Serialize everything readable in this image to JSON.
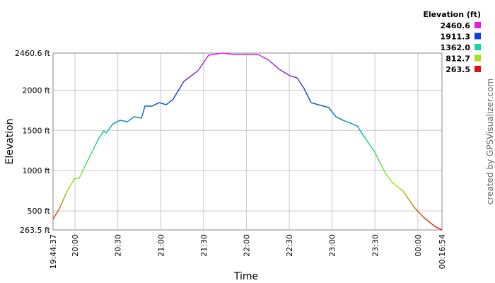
{
  "chart_data": {
    "type": "line",
    "x_label": "Time",
    "y_label": "Elevation",
    "credit": "created by GPSVisualizer.com",
    "grid": true,
    "line_width": 1.5,
    "legend": {
      "title": "Elevation (ft)",
      "entries": [
        {
          "value": 2460.6,
          "label": "2460.6",
          "color": "#e020e0"
        },
        {
          "value": 1911.3,
          "label": "1911.3",
          "color": "#1040d8"
        },
        {
          "value": 1362.0,
          "label": "1362.0",
          "color": "#10d8a0"
        },
        {
          "value": 812.7,
          "label": "812.7",
          "color": "#a8e020"
        },
        {
          "value": 263.5,
          "label": "263.5",
          "color": "#e01010"
        }
      ]
    },
    "xlim": [
      71077,
      87414
    ],
    "xticks": [
      {
        "value": 71077,
        "label": "19:44:37"
      },
      {
        "value": 72000,
        "label": "20:00"
      },
      {
        "value": 73800,
        "label": "20:30"
      },
      {
        "value": 75600,
        "label": "21:00"
      },
      {
        "value": 77400,
        "label": "21:30"
      },
      {
        "value": 79200,
        "label": "22:00"
      },
      {
        "value": 81000,
        "label": "22:30"
      },
      {
        "value": 82800,
        "label": "23:00"
      },
      {
        "value": 84600,
        "label": "23:30"
      },
      {
        "value": 86400,
        "label": "00:00"
      },
      {
        "value": 87414,
        "label": "00:16:54"
      }
    ],
    "ylim": [
      263.5,
      2460.6
    ],
    "yticks": [
      {
        "value": 263.5,
        "label": "263.5 ft"
      },
      {
        "value": 500,
        "label": "500 ft"
      },
      {
        "value": 1000,
        "label": "1000 ft"
      },
      {
        "value": 1500,
        "label": "1500 ft"
      },
      {
        "value": 2000,
        "label": "2000 ft"
      },
      {
        "value": 2460.6,
        "label": "2460.6 ft"
      }
    ],
    "x": [
      71077,
      71374,
      71671,
      71968,
      72176,
      72414,
      72711,
      73008,
      73215,
      73305,
      73602,
      73899,
      74196,
      74493,
      74790,
      74938,
      75235,
      75532,
      75829,
      76126,
      76572,
      77166,
      77611,
      78205,
      78651,
      79690,
      80136,
      80581,
      81027,
      81324,
      81621,
      81918,
      82215,
      82660,
      82957,
      83254,
      83848,
      84145,
      84591,
      85036,
      85333,
      85779,
      86224,
      86670,
      87115,
      87414
    ],
    "values": [
      395,
      545,
      747,
      896,
      905,
      1054,
      1230,
      1406,
      1494,
      1468,
      1582,
      1626,
      1608,
      1670,
      1652,
      1802,
      1802,
      1845,
      1819,
      1889,
      2109,
      2241,
      2434,
      2460.6,
      2443,
      2443,
      2373,
      2258,
      2179,
      2153,
      2021,
      1845,
      1819,
      1784,
      1670,
      1626,
      1556,
      1423,
      1230,
      967,
      852,
      747,
      553,
      413,
      308,
      263.5
    ]
  }
}
